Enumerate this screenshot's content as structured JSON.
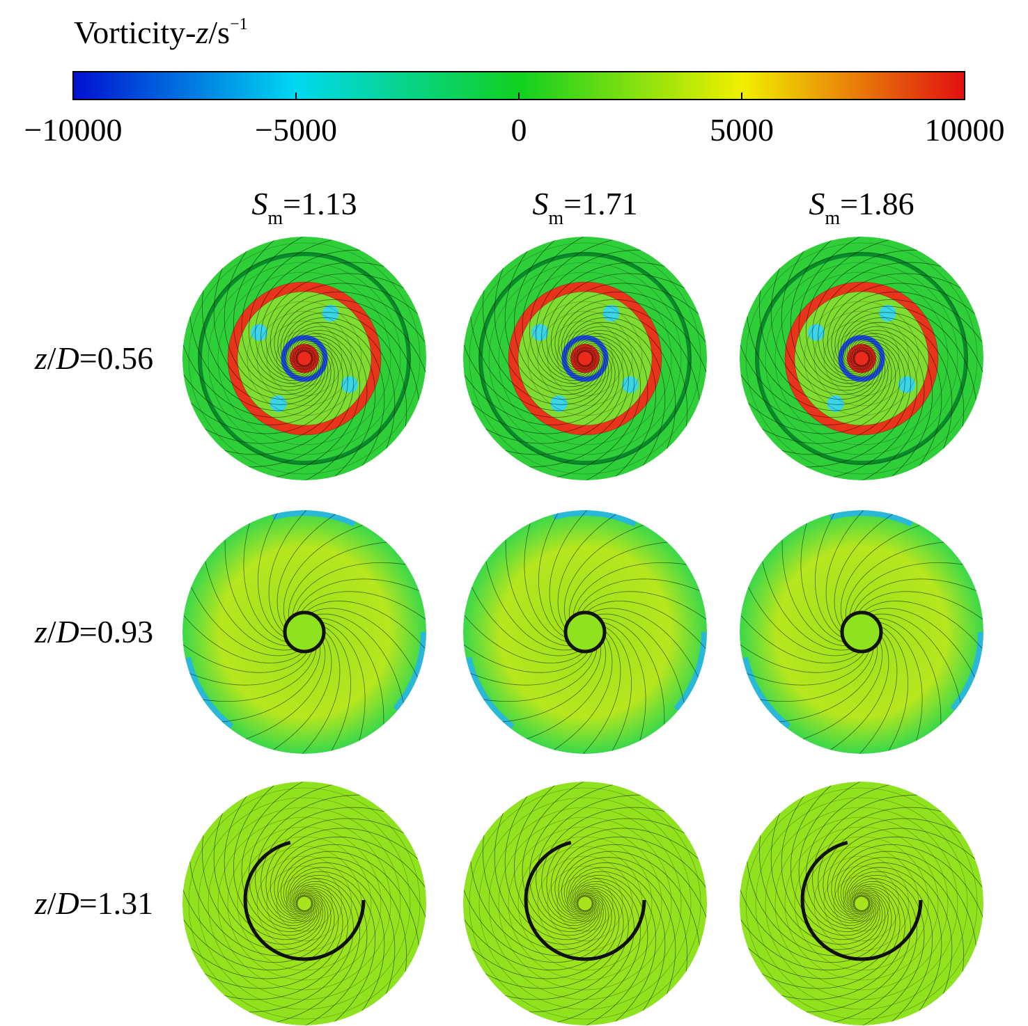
{
  "colorbar": {
    "title": {
      "text": "Vorticity-",
      "italic": "z",
      "unit": "/s",
      "exponent": "−1"
    },
    "lim": [
      -10000,
      10000
    ],
    "ticks": [
      {
        "value": -10000,
        "label": "−10000"
      },
      {
        "value": -5000,
        "label": "−5000"
      },
      0,
      5000,
      10000
    ]
  },
  "columns": [
    {
      "symbol": "S",
      "subscript": "m",
      "text": "=1.13"
    },
    {
      "symbol": "S",
      "subscript": "m",
      "text": "=1.71"
    },
    {
      "symbol": "S",
      "subscript": "m",
      "text": "=1.86"
    }
  ],
  "rows": [
    {
      "symbol": "z",
      "slash": "/",
      "symbol2": "D",
      "text": "=0.56"
    },
    {
      "symbol": "z",
      "slash": "/",
      "symbol2": "D",
      "text": "=0.93"
    },
    {
      "symbol": "z",
      "slash": "/",
      "symbol2": "D",
      "text": "=1.31"
    }
  ]
}
